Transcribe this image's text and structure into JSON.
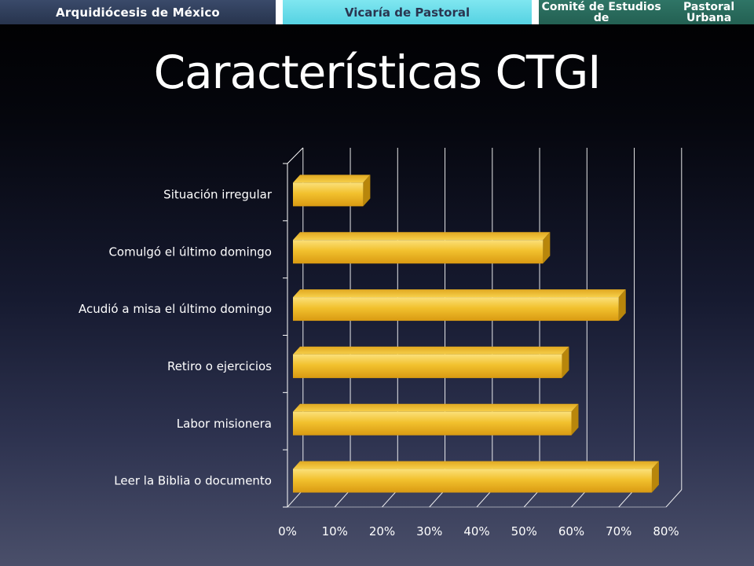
{
  "header": {
    "tab1": "Arquidiócesis de México",
    "tab2": "Vicaría de Pastoral",
    "tab3_line1": "Comité de Estudios de",
    "tab3_line2": "Pastoral Urbana"
  },
  "slide": {
    "title": "Características CTGI"
  },
  "colors": {
    "bar": "#f2c12e",
    "bar_side": "#b8860b",
    "grid": "#ffffff"
  },
  "chart_data": {
    "type": "bar",
    "orientation": "horizontal",
    "style": "3d",
    "categories": [
      "Situación irregular",
      "Comulgó el último domingo",
      "Acudió a misa el último domingo",
      "Retiro o ejercicios",
      "Labor misionera",
      "Leer la Biblia o documento"
    ],
    "values": [
      0.16,
      0.54,
      0.7,
      0.58,
      0.6,
      0.77
    ],
    "xlim": [
      0,
      0.8
    ],
    "xticks": [
      "0%",
      "10%",
      "20%",
      "30%",
      "40%",
      "50%",
      "60%",
      "70%",
      "80%"
    ],
    "grid": true,
    "legend": "none"
  }
}
